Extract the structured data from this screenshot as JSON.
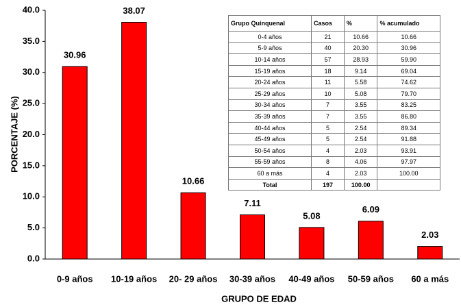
{
  "chart_data": {
    "type": "bar",
    "x_label": "GRUPO DE EDAD",
    "y_label": "PORCENTAJE (%)",
    "categories": [
      "0-9 años",
      "10-19 años",
      "20- 29 años",
      "30-39 años",
      "40-49 años",
      "50-59 años",
      "60 a más"
    ],
    "values": [
      30.96,
      38.07,
      10.66,
      7.11,
      5.08,
      6.09,
      2.03
    ],
    "color": "#ff0000",
    "ylim": [
      0,
      40
    ],
    "yticks": [
      {
        "value": 0,
        "label": "0.0"
      },
      {
        "value": 5,
        "label": "5.0"
      },
      {
        "value": 10,
        "label": "10.0"
      },
      {
        "value": 15,
        "label": "15.0"
      },
      {
        "value": 20,
        "label": "20.0"
      },
      {
        "value": 25,
        "label": "25.0"
      },
      {
        "value": 30,
        "label": "30.0"
      },
      {
        "value": 35,
        "label": "35.0"
      },
      {
        "value": 40,
        "label": "40.0"
      }
    ],
    "grid": false
  },
  "table": {
    "header": [
      "Grupo Quinquenal",
      "Casos",
      "%",
      "% acumulado"
    ],
    "rows": [
      [
        "0-4 años",
        "21",
        "10.66",
        "10.66"
      ],
      [
        "5-9 años",
        "40",
        "20.30",
        "30.96"
      ],
      [
        "10-14 años",
        "57",
        "28.93",
        "59.90"
      ],
      [
        "15-19 años",
        "18",
        "9.14",
        "69.04"
      ],
      [
        "20-24 años",
        "11",
        "5.58",
        "74.62"
      ],
      [
        "25-29 años",
        "10",
        "5.08",
        "79.70"
      ],
      [
        "30-34 años",
        "7",
        "3.55",
        "83.25"
      ],
      [
        "35-39 años",
        "7",
        "3.55",
        "86.80"
      ],
      [
        "40-44 años",
        "5",
        "2.54",
        "89.34"
      ],
      [
        "45-49 años",
        "5",
        "2.54",
        "91.88"
      ],
      [
        "50-54 años",
        "4",
        "2.03",
        "93.91"
      ],
      [
        "55-59 años",
        "8",
        "4.06",
        "97.97"
      ],
      [
        "60 a más",
        "4",
        "2.03",
        "100.00"
      ]
    ],
    "total": [
      "Total",
      "197",
      "100.00"
    ]
  }
}
